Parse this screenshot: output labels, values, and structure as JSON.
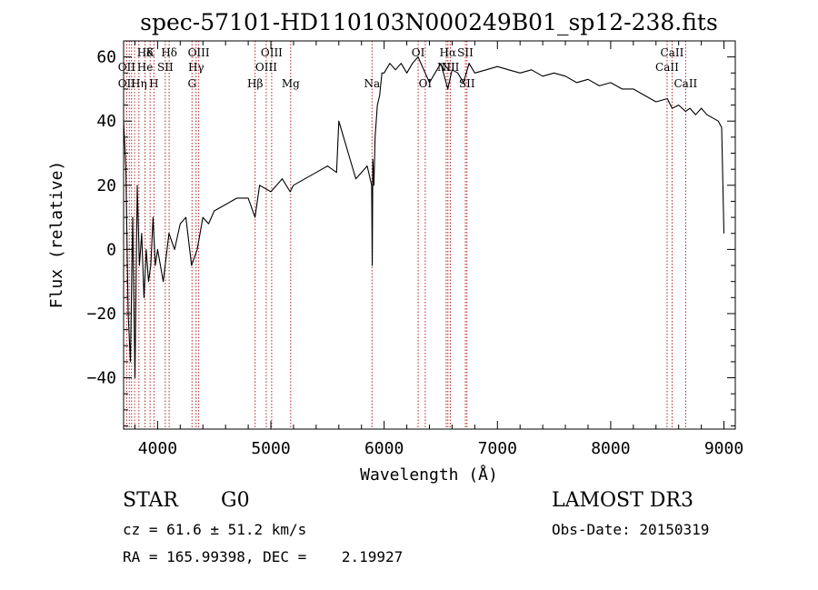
{
  "chart_data": {
    "type": "line",
    "title": "spec-57101-HD110103N000249B01_sp12-238.fits",
    "xlabel": "Wavelength (Å)",
    "ylabel": "Flux (relative)",
    "xlim": [
      3700,
      9100
    ],
    "ylim": [
      -56,
      65
    ],
    "xticks": [
      4000,
      5000,
      6000,
      7000,
      8000,
      9000
    ],
    "yticks": [
      -40,
      -20,
      0,
      20,
      40,
      60
    ],
    "series": [
      {
        "name": "flux",
        "x": [
          3700,
          3720,
          3740,
          3760,
          3780,
          3800,
          3820,
          3840,
          3860,
          3880,
          3900,
          3920,
          3940,
          3960,
          3980,
          4000,
          4050,
          4100,
          4150,
          4200,
          4250,
          4300,
          4350,
          4400,
          4450,
          4500,
          4600,
          4700,
          4800,
          4860,
          4900,
          5000,
          5100,
          5170,
          5200,
          5300,
          5400,
          5500,
          5580,
          5600,
          5700,
          5750,
          5800,
          5850,
          5890,
          5895,
          5900,
          5910,
          5920,
          5940,
          5960,
          5980,
          6000,
          6050,
          6100,
          6150,
          6200,
          6250,
          6300,
          6350,
          6400,
          6450,
          6500,
          6562,
          6600,
          6650,
          6700,
          6750,
          6800,
          6900,
          7000,
          7100,
          7200,
          7300,
          7400,
          7500,
          7600,
          7700,
          7800,
          7900,
          8000,
          8100,
          8200,
          8300,
          8400,
          8500,
          8542,
          8600,
          8662,
          8700,
          8750,
          8800,
          8850,
          8900,
          8950,
          8980,
          9000
        ],
        "values": [
          40,
          25,
          -20,
          -35,
          10,
          -40,
          20,
          -5,
          5,
          -15,
          0,
          -10,
          -5,
          10,
          -5,
          0,
          -10,
          5,
          0,
          8,
          10,
          -5,
          0,
          10,
          8,
          12,
          14,
          16,
          16,
          10,
          20,
          18,
          22,
          18,
          20,
          22,
          24,
          26,
          24,
          40,
          28,
          22,
          24,
          26,
          20,
          -5,
          28,
          20,
          35,
          45,
          48,
          55,
          55,
          58,
          56,
          58,
          55,
          58,
          60,
          56,
          52,
          55,
          58,
          50,
          56,
          55,
          52,
          58,
          55,
          56,
          57,
          56,
          55,
          56,
          54,
          55,
          54,
          52,
          53,
          51,
          52,
          50,
          50,
          48,
          46,
          47,
          44,
          45,
          43,
          44,
          42,
          44,
          42,
          41,
          40,
          38,
          5
        ]
      }
    ],
    "line_labels": [
      {
        "text": "Hδ",
        "x": 3889,
        "row": 1
      },
      {
        "text": "K",
        "x": 3934,
        "row": 1
      },
      {
        "text": "Hδ",
        "x": 4102,
        "row": 1
      },
      {
        "text": "OIII",
        "x": 4363,
        "row": 1
      },
      {
        "text": "OIII",
        "x": 5007,
        "row": 1
      },
      {
        "text": "OI",
        "x": 6300,
        "row": 1
      },
      {
        "text": "Hα",
        "x": 6563,
        "row": 1
      },
      {
        "text": "SII",
        "x": 6717,
        "row": 1
      },
      {
        "text": "CaII",
        "x": 8542,
        "row": 1
      },
      {
        "text": "OII",
        "x": 3727,
        "row": 2
      },
      {
        "text": "He",
        "x": 3889,
        "row": 2
      },
      {
        "text": "SII",
        "x": 4068,
        "row": 2
      },
      {
        "text": "Hγ",
        "x": 4340,
        "row": 2
      },
      {
        "text": "OIII",
        "x": 4959,
        "row": 2
      },
      {
        "text": "NII",
        "x": 6548,
        "row": 2
      },
      {
        "text": "NII",
        "x": 6584,
        "row": 2
      },
      {
        "text": "CaII",
        "x": 8498,
        "row": 2
      },
      {
        "text": "OII",
        "x": 3727,
        "row": 3
      },
      {
        "text": "Hη",
        "x": 3835,
        "row": 3
      },
      {
        "text": "H",
        "x": 3968,
        "row": 3
      },
      {
        "text": "G",
        "x": 4304,
        "row": 3
      },
      {
        "text": "Hβ",
        "x": 4861,
        "row": 3
      },
      {
        "text": "Mg",
        "x": 5175,
        "row": 3
      },
      {
        "text": "Na",
        "x": 5893,
        "row": 3
      },
      {
        "text": "OI",
        "x": 6363,
        "row": 3
      },
      {
        "text": "SII",
        "x": 6731,
        "row": 3
      },
      {
        "text": "CaII",
        "x": 8662,
        "row": 3
      }
    ],
    "line_markers": [
      3727,
      3750,
      3770,
      3797,
      3835,
      3889,
      3934,
      3968,
      4068,
      4102,
      4304,
      4340,
      4363,
      4861,
      4959,
      5007,
      5175,
      5893,
      6300,
      6363,
      6548,
      6563,
      6584,
      6717,
      6731,
      8498,
      8542,
      8662
    ]
  },
  "info": {
    "object_class": "STAR",
    "subclass": "G0",
    "survey": "LAMOST DR3",
    "cz": "cz = 61.6 ± 51.2 km/s",
    "obs_date": "Obs-Date: 20150319",
    "coords": "RA = 165.99398, DEC =    2.19927"
  },
  "colors": {
    "spectrum": "#000000",
    "marker": "#b22222",
    "axes": "#000000"
  }
}
